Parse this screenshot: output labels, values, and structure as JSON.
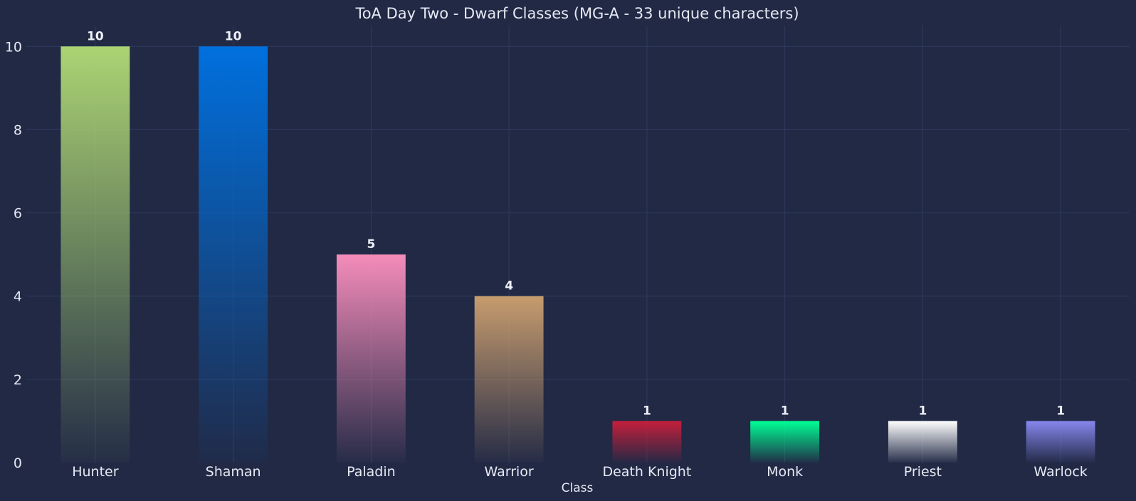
{
  "chart_data": {
    "type": "bar",
    "title": "ToA Day Two - Dwarf Classes (MG-A - 33 unique characters)",
    "xlabel": "Class",
    "ylabel": "",
    "categories": [
      "Hunter",
      "Shaman",
      "Paladin",
      "Warrior",
      "Death Knight",
      "Monk",
      "Priest",
      "Warlock"
    ],
    "values": [
      10,
      10,
      5,
      4,
      1,
      1,
      1,
      1
    ],
    "colors": [
      "#abd473",
      "#0070de",
      "#f58cba",
      "#c79c6e",
      "#c41f3b",
      "#00ff96",
      "#ffffff",
      "#8787ed"
    ],
    "ylim": [
      0,
      10.5
    ],
    "yticks": [
      0,
      2,
      4,
      6,
      8,
      10
    ],
    "grid": true,
    "legend": "none"
  }
}
